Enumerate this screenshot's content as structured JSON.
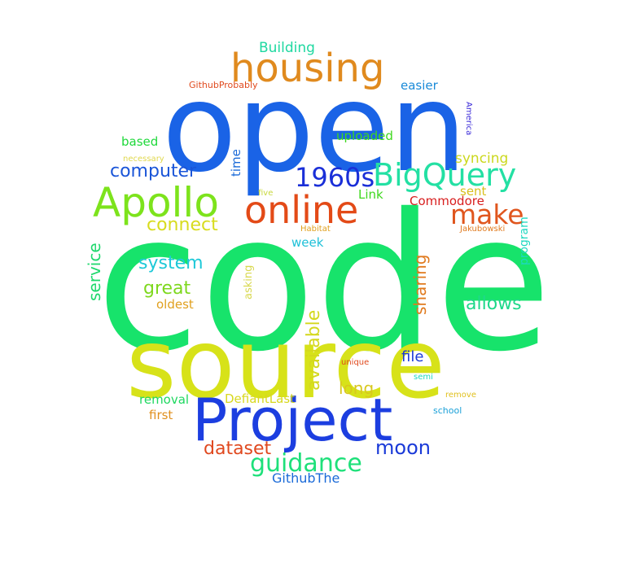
{
  "words": [
    {
      "text": "code",
      "color": "#17e36b"
    },
    {
      "text": "open",
      "color": "#1a63e6"
    },
    {
      "text": "source",
      "color": "#d7e219"
    },
    {
      "text": "Project",
      "color": "#1c3ee0"
    },
    {
      "text": "housing",
      "color": "#e08a1e"
    },
    {
      "text": "online",
      "color": "#e34a17"
    },
    {
      "text": "Apollo",
      "color": "#7de31c"
    },
    {
      "text": "BigQuery",
      "color": "#23e0a3"
    },
    {
      "text": "1960s",
      "color": "#1a2fd8"
    },
    {
      "text": "make",
      "color": "#e0561e"
    },
    {
      "text": "guidance",
      "color": "#1ee07a"
    },
    {
      "text": "computer",
      "color": "#1a55d8"
    },
    {
      "text": "connect",
      "color": "#d8dc1e"
    },
    {
      "text": "moon",
      "color": "#1a3ad8"
    },
    {
      "text": "system",
      "color": "#1ec9d8"
    },
    {
      "text": "great",
      "color": "#7ed81e"
    },
    {
      "text": "dataset",
      "color": "#e0481e"
    },
    {
      "text": "allows",
      "color": "#1ed88a"
    },
    {
      "text": "available",
      "color": "#d4d81e"
    },
    {
      "text": "sharing",
      "color": "#e07a1e"
    },
    {
      "text": "service",
      "color": "#1ed86c"
    },
    {
      "text": "long",
      "color": "#d8c81e"
    },
    {
      "text": "Building",
      "color": "#1ed8a0"
    },
    {
      "text": "file",
      "color": "#1a3ad8"
    },
    {
      "text": "syncing",
      "color": "#cbd81e"
    },
    {
      "text": "easier",
      "color": "#1a8ad8"
    },
    {
      "text": "uploaded",
      "color": "#3ed81e"
    },
    {
      "text": "based",
      "color": "#1ed83a"
    },
    {
      "text": "time",
      "color": "#1a6ad8"
    },
    {
      "text": "Commodore",
      "color": "#d81e1e"
    },
    {
      "text": "Link",
      "color": "#3ed81e"
    },
    {
      "text": "sent",
      "color": "#d8c01e"
    },
    {
      "text": "week",
      "color": "#1ec0d8"
    },
    {
      "text": "oldest",
      "color": "#e0a01e"
    },
    {
      "text": "removal",
      "color": "#1ed860"
    },
    {
      "text": "DefiantLast",
      "color": "#d8d81e"
    },
    {
      "text": "first",
      "color": "#e0901e"
    },
    {
      "text": "GithubThe",
      "color": "#1a6ad8"
    },
    {
      "text": "program",
      "color": "#1ed8c0"
    },
    {
      "text": "asking",
      "color": "#d8d84e"
    },
    {
      "text": "GithubProbably",
      "color": "#e04a1e"
    },
    {
      "text": "necessary",
      "color": "#e0d84e"
    },
    {
      "text": "five",
      "color": "#c8d83e"
    },
    {
      "text": "America",
      "color": "#3a2ad8"
    },
    {
      "text": "Habitat",
      "color": "#e0a01e"
    },
    {
      "text": "Jakubowski",
      "color": "#e07a1e"
    },
    {
      "text": "unique",
      "color": "#e04a1e"
    },
    {
      "text": "semi",
      "color": "#1ed8c0"
    },
    {
      "text": "remove",
      "color": "#e0c01e"
    },
    {
      "text": "school",
      "color": "#1aa0d8"
    }
  ]
}
